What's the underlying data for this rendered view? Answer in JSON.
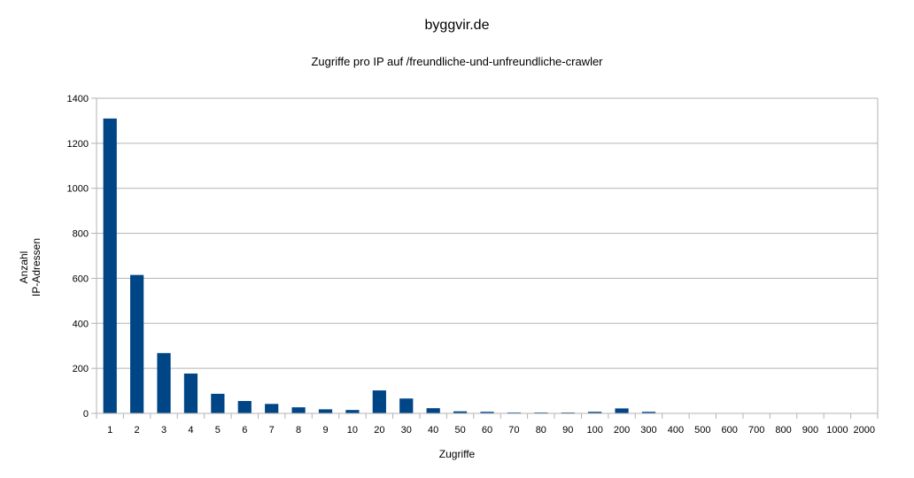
{
  "chart_data": {
    "type": "bar",
    "title": "byggvir.de",
    "subtitle": "Zugriffe pro IP auf /freundliche-und-unfreundliche-crawler",
    "xlabel": "Zugriffe",
    "ylabel_lines": [
      "Anzahl",
      "IP-Adressen"
    ],
    "categories": [
      "1",
      "2",
      "3",
      "4",
      "5",
      "6",
      "7",
      "8",
      "9",
      "10",
      "20",
      "30",
      "40",
      "50",
      "60",
      "70",
      "80",
      "90",
      "100",
      "200",
      "300",
      "400",
      "500",
      "600",
      "700",
      "800",
      "900",
      "1000",
      "2000"
    ],
    "series": [
      {
        "values": [
          1310,
          615,
          268,
          177,
          87,
          55,
          42,
          27,
          18,
          15,
          102,
          66,
          23,
          9,
          7,
          4,
          4,
          4,
          7,
          22,
          7,
          0,
          0,
          0,
          0,
          0,
          0,
          0,
          0
        ]
      }
    ],
    "ylim": [
      0,
      1400
    ],
    "yticks": [
      0,
      200,
      400,
      600,
      800,
      1000,
      1200,
      1400
    ],
    "grid": true,
    "legend": "none",
    "bar_color": "#004586",
    "grid_color": "#b3b3b3"
  }
}
